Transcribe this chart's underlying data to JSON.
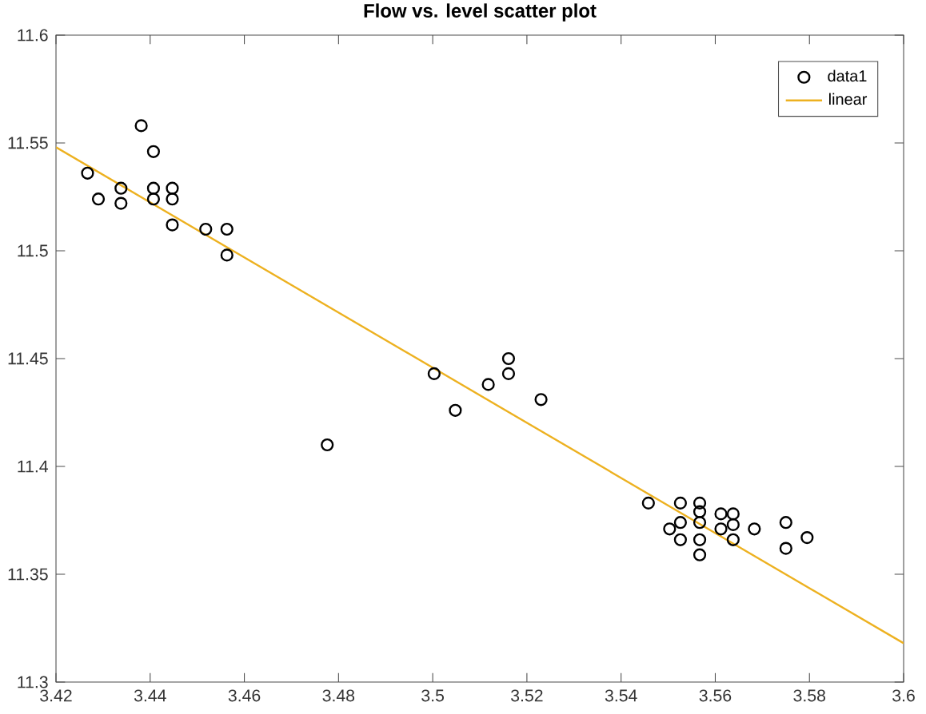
{
  "chart_data": {
    "type": "scatter",
    "title": "Flow vs. level scatter plot",
    "xlim": [
      3.42,
      3.6
    ],
    "ylim": [
      11.3,
      11.6
    ],
    "xticks": [
      3.42,
      3.44,
      3.46,
      3.48,
      3.5,
      3.52,
      3.54,
      3.56,
      3.58,
      3.6
    ],
    "yticks": [
      11.3,
      11.35,
      11.4,
      11.45,
      11.5,
      11.55,
      11.6
    ],
    "grid": false,
    "legend": "top right",
    "series": [
      {
        "name": "data1",
        "marker": "circle",
        "color": "#000000",
        "x": [
          3.4267,
          3.429,
          3.4338,
          3.4338,
          3.4381,
          3.4407,
          3.4407,
          3.4407,
          3.4447,
          3.4447,
          3.4447,
          3.4518,
          3.4563,
          3.4563,
          3.4776,
          3.5003,
          3.5048,
          3.5118,
          3.5161,
          3.5161,
          3.523,
          3.5458,
          3.5526,
          3.5567,
          3.5503,
          3.5526,
          3.5526,
          3.5567,
          3.5567,
          3.5567,
          3.5567,
          3.5612,
          3.5612,
          3.5638,
          3.5638,
          3.5638,
          3.5683,
          3.575,
          3.575,
          3.5795
        ],
        "values": [
          11.536,
          11.524,
          11.529,
          11.522,
          11.558,
          11.546,
          11.529,
          11.524,
          11.529,
          11.524,
          11.512,
          11.51,
          11.51,
          11.498,
          11.41,
          11.443,
          11.426,
          11.438,
          11.45,
          11.443,
          11.431,
          11.383,
          11.383,
          11.383,
          11.371,
          11.374,
          11.366,
          11.379,
          11.374,
          11.366,
          11.359,
          11.378,
          11.371,
          11.378,
          11.373,
          11.366,
          11.371,
          11.374,
          11.362,
          11.367
        ]
      },
      {
        "name": "linear",
        "type": "line",
        "line_style": "solid",
        "color": "#edb120",
        "x": [
          3.42,
          3.6
        ],
        "values": [
          11.548,
          11.318
        ]
      }
    ]
  }
}
